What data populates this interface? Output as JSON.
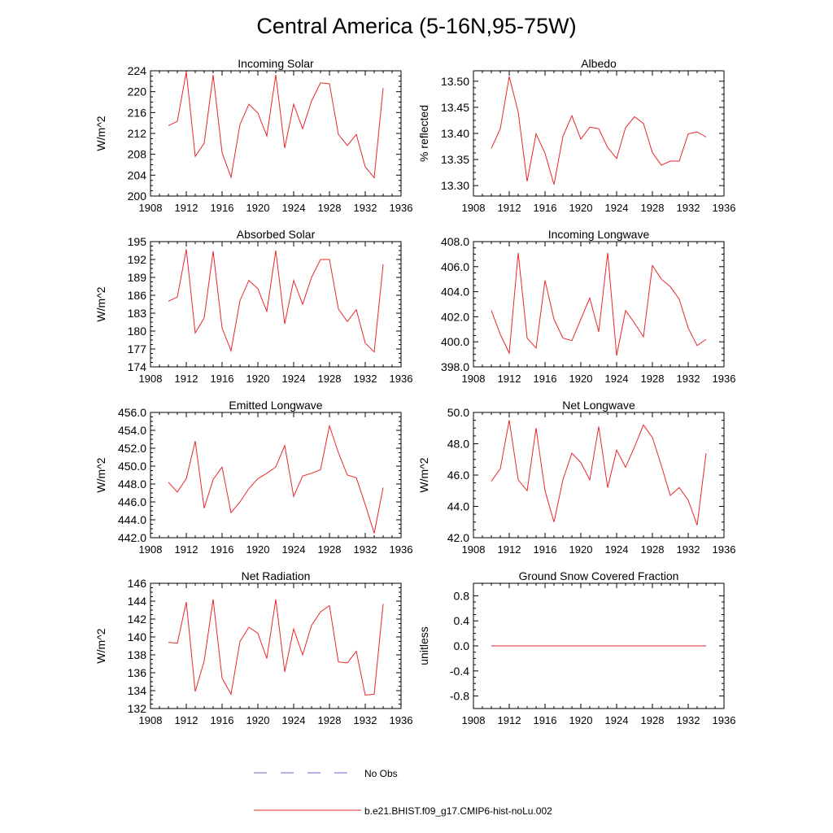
{
  "figure": {
    "title": "Central America (5-16N,95-75W)",
    "legend": [
      {
        "label": "No Obs",
        "color": "#6a6ad8",
        "dash": "dashed"
      },
      {
        "label": "b.e21.BHIST.f09_g17.CMIP6-hist-noLu.002",
        "color": "#e8272a",
        "dash": "solid"
      }
    ]
  },
  "chart_data": [
    {
      "type": "line",
      "title": "Incoming Solar",
      "ylabel": "W/m^2",
      "xlim": [
        1908,
        1936
      ],
      "ylim": [
        200,
        224
      ],
      "xticks": [
        1908,
        1912,
        1916,
        1920,
        1924,
        1928,
        1932,
        1936
      ],
      "xtick_labels": [
        "1908",
        "1912",
        "1916",
        "1920",
        "1924",
        "1928",
        "1932",
        "1936"
      ],
      "yticks": [
        200,
        204,
        208,
        212,
        216,
        220,
        224
      ],
      "ytick_labels": [
        "200",
        "204",
        "208",
        "212",
        "216",
        "220",
        "224"
      ],
      "series": [
        {
          "color": "#e8272a",
          "x": [
            1910,
            1911,
            1912,
            1913,
            1914,
            1915,
            1916,
            1917,
            1918,
            1919,
            1920,
            1921,
            1922,
            1923,
            1924,
            1925,
            1926,
            1927,
            1928,
            1929,
            1930,
            1931,
            1932,
            1933,
            1934
          ],
          "y": [
            213.5,
            214.3,
            223.8,
            207.6,
            210.1,
            223.2,
            208.3,
            203.6,
            213.7,
            217.6,
            215.9,
            211.5,
            223.2,
            209.2,
            217.6,
            212.9,
            218.2,
            221.7,
            221.5,
            211.8,
            209.7,
            211.8,
            205.6,
            203.5,
            220.7
          ]
        }
      ]
    },
    {
      "type": "line",
      "title": "Albedo",
      "ylabel": "% reflected",
      "xlim": [
        1908,
        1936
      ],
      "ylim": [
        13.28,
        13.52
      ],
      "xticks": [
        1908,
        1912,
        1916,
        1920,
        1924,
        1928,
        1932,
        1936
      ],
      "xtick_labels": [
        "1908",
        "1912",
        "1916",
        "1920",
        "1924",
        "1928",
        "1932",
        "1936"
      ],
      "yticks": [
        13.3,
        13.35,
        13.4,
        13.45,
        13.5
      ],
      "ytick_labels": [
        "13.30",
        "13.35",
        "13.40",
        "13.45",
        "13.50"
      ],
      "series": [
        {
          "color": "#e8272a",
          "x": [
            1910,
            1911,
            1912,
            1913,
            1914,
            1915,
            1916,
            1917,
            1918,
            1919,
            1920,
            1921,
            1922,
            1923,
            1924,
            1925,
            1926,
            1927,
            1928,
            1929,
            1930,
            1931,
            1932,
            1933,
            1934
          ],
          "y": [
            13.371,
            13.409,
            13.509,
            13.441,
            13.308,
            13.399,
            13.362,
            13.302,
            13.394,
            13.434,
            13.389,
            13.412,
            13.409,
            13.373,
            13.352,
            13.411,
            13.432,
            13.419,
            13.363,
            13.339,
            13.347,
            13.347,
            13.399,
            13.403,
            13.393
          ]
        }
      ]
    },
    {
      "type": "line",
      "title": "Absorbed Solar",
      "ylabel": "W/m^2",
      "xlim": [
        1908,
        1936
      ],
      "ylim": [
        174,
        195
      ],
      "xticks": [
        1908,
        1912,
        1916,
        1920,
        1924,
        1928,
        1932,
        1936
      ],
      "xtick_labels": [
        "1908",
        "1912",
        "1916",
        "1920",
        "1924",
        "1928",
        "1932",
        "1936"
      ],
      "yticks": [
        174,
        177,
        180,
        183,
        186,
        189,
        192,
        195
      ],
      "ytick_labels": [
        "174",
        "177",
        "180",
        "183",
        "186",
        "189",
        "192",
        "195"
      ],
      "series": [
        {
          "color": "#e8272a",
          "x": [
            1910,
            1911,
            1912,
            1913,
            1914,
            1915,
            1916,
            1917,
            1918,
            1919,
            1920,
            1921,
            1922,
            1923,
            1924,
            1925,
            1926,
            1927,
            1928,
            1929,
            1930,
            1931,
            1932,
            1933,
            1934
          ],
          "y": [
            185.0,
            185.7,
            193.7,
            179.7,
            182.2,
            193.4,
            180.5,
            176.7,
            185.1,
            188.5,
            187.1,
            183.3,
            193.5,
            181.2,
            188.5,
            184.5,
            189.0,
            192.0,
            192.0,
            183.7,
            181.6,
            183.6,
            178.0,
            176.5,
            191.2
          ]
        }
      ]
    },
    {
      "type": "line",
      "title": "Incoming Longwave",
      "ylabel": "",
      "xlim": [
        1908,
        1936
      ],
      "ylim": [
        398,
        408
      ],
      "xticks": [
        1908,
        1912,
        1916,
        1920,
        1924,
        1928,
        1932,
        1936
      ],
      "xtick_labels": [
        "1908",
        "1912",
        "1916",
        "1920",
        "1924",
        "1928",
        "1932",
        "1936"
      ],
      "yticks": [
        398,
        400,
        402,
        404,
        406,
        408
      ],
      "ytick_labels": [
        "398.0",
        "400.0",
        "402.0",
        "404.0",
        "406.0",
        "408.0"
      ],
      "series": [
        {
          "color": "#e8272a",
          "x": [
            1910,
            1911,
            1912,
            1913,
            1914,
            1915,
            1916,
            1917,
            1918,
            1919,
            1920,
            1921,
            1922,
            1923,
            1924,
            1925,
            1926,
            1927,
            1928,
            1929,
            1930,
            1931,
            1932,
            1933,
            1934
          ],
          "y": [
            402.5,
            400.6,
            399.1,
            407.1,
            400.3,
            399.5,
            404.9,
            401.8,
            400.3,
            400.1,
            401.8,
            403.5,
            400.8,
            407.1,
            398.9,
            402.5,
            401.5,
            400.4,
            406.1,
            405.0,
            404.4,
            403.4,
            401.1,
            399.7,
            400.2
          ]
        }
      ]
    },
    {
      "type": "line",
      "title": "Emitted Longwave",
      "ylabel": "W/m^2",
      "xlim": [
        1908,
        1936
      ],
      "ylim": [
        442,
        456
      ],
      "xticks": [
        1908,
        1912,
        1916,
        1920,
        1924,
        1928,
        1932,
        1936
      ],
      "xtick_labels": [
        "1908",
        "1912",
        "1916",
        "1920",
        "1924",
        "1928",
        "1932",
        "1936"
      ],
      "yticks": [
        442,
        444,
        446,
        448,
        450,
        452,
        454,
        456
      ],
      "ytick_labels": [
        "442.0",
        "444.0",
        "446.0",
        "448.0",
        "450.0",
        "452.0",
        "454.0",
        "456.0"
      ],
      "series": [
        {
          "color": "#e8272a",
          "x": [
            1910,
            1911,
            1912,
            1913,
            1914,
            1915,
            1916,
            1917,
            1918,
            1919,
            1920,
            1921,
            1922,
            1923,
            1924,
            1925,
            1926,
            1927,
            1928,
            1929,
            1930,
            1931,
            1932,
            1933,
            1934
          ],
          "y": [
            448.2,
            447.1,
            448.6,
            452.8,
            445.3,
            448.5,
            449.9,
            444.8,
            446.0,
            447.5,
            448.6,
            449.2,
            449.9,
            452.3,
            446.6,
            448.9,
            449.2,
            449.6,
            454.5,
            451.5,
            449.0,
            448.7,
            445.7,
            442.5,
            447.6
          ]
        }
      ]
    },
    {
      "type": "line",
      "title": "Net Longwave",
      "ylabel": "W/m^2",
      "xlim": [
        1908,
        1936
      ],
      "ylim": [
        42,
        50
      ],
      "xticks": [
        1908,
        1912,
        1916,
        1920,
        1924,
        1928,
        1932,
        1936
      ],
      "xtick_labels": [
        "1908",
        "1912",
        "1916",
        "1920",
        "1924",
        "1928",
        "1932",
        "1936"
      ],
      "yticks": [
        42,
        44,
        46,
        48,
        50
      ],
      "ytick_labels": [
        "42.0",
        "44.0",
        "46.0",
        "48.0",
        "50.0"
      ],
      "series": [
        {
          "color": "#e8272a",
          "x": [
            1910,
            1911,
            1912,
            1913,
            1914,
            1915,
            1916,
            1917,
            1918,
            1919,
            1920,
            1921,
            1922,
            1923,
            1924,
            1925,
            1926,
            1927,
            1928,
            1929,
            1930,
            1931,
            1932,
            1933,
            1934
          ],
          "y": [
            45.6,
            46.4,
            49.5,
            45.7,
            45.0,
            49.0,
            45.0,
            43.0,
            45.7,
            47.4,
            46.8,
            45.7,
            49.1,
            45.2,
            47.6,
            46.5,
            47.8,
            49.2,
            48.4,
            46.6,
            44.7,
            45.2,
            44.4,
            42.8,
            47.4
          ]
        }
      ]
    },
    {
      "type": "line",
      "title": "Net Radiation",
      "ylabel": "W/m^2",
      "xlim": [
        1908,
        1936
      ],
      "ylim": [
        132,
        146
      ],
      "xticks": [
        1908,
        1912,
        1916,
        1920,
        1924,
        1928,
        1932,
        1936
      ],
      "xtick_labels": [
        "1908",
        "1912",
        "1916",
        "1920",
        "1924",
        "1928",
        "1932",
        "1936"
      ],
      "yticks": [
        132,
        134,
        136,
        138,
        140,
        142,
        144,
        146
      ],
      "ytick_labels": [
        "132",
        "134",
        "136",
        "138",
        "140",
        "142",
        "144",
        "146"
      ],
      "series": [
        {
          "color": "#e8272a",
          "x": [
            1910,
            1911,
            1912,
            1913,
            1914,
            1915,
            1916,
            1917,
            1918,
            1919,
            1920,
            1921,
            1922,
            1923,
            1924,
            1925,
            1926,
            1927,
            1928,
            1929,
            1930,
            1931,
            1932,
            1933,
            1934
          ],
          "y": [
            139.4,
            139.3,
            143.9,
            133.9,
            137.3,
            144.2,
            135.4,
            133.6,
            139.5,
            141.1,
            140.4,
            137.6,
            144.2,
            136.1,
            140.9,
            138.0,
            141.3,
            142.8,
            143.5,
            137.2,
            137.1,
            138.4,
            133.5,
            133.6,
            143.7
          ]
        }
      ]
    },
    {
      "type": "line",
      "title": "Ground Snow Covered Fraction",
      "ylabel": "unitless",
      "xlim": [
        1908,
        1936
      ],
      "ylim": [
        -1.0,
        1.0
      ],
      "xticks": [
        1908,
        1912,
        1916,
        1920,
        1924,
        1928,
        1932,
        1936
      ],
      "xtick_labels": [
        "1908",
        "1912",
        "1916",
        "1920",
        "1924",
        "1928",
        "1932",
        "1936"
      ],
      "yticks": [
        -0.8,
        -0.4,
        0.0,
        0.4,
        0.8
      ],
      "ytick_labels": [
        "-0.8",
        "-0.4",
        "0.0",
        "0.4",
        "0.8"
      ],
      "series": [
        {
          "color": "#e8272a",
          "x": [
            1910,
            1911,
            1912,
            1913,
            1914,
            1915,
            1916,
            1917,
            1918,
            1919,
            1920,
            1921,
            1922,
            1923,
            1924,
            1925,
            1926,
            1927,
            1928,
            1929,
            1930,
            1931,
            1932,
            1933,
            1934
          ],
          "y": [
            0,
            0,
            0,
            0,
            0,
            0,
            0,
            0,
            0,
            0,
            0,
            0,
            0,
            0,
            0,
            0,
            0,
            0,
            0,
            0,
            0,
            0,
            0,
            0,
            0
          ]
        }
      ]
    }
  ]
}
